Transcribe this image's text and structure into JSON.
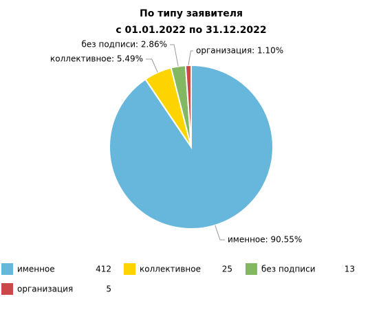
{
  "chart_data": {
    "type": "pie",
    "title": "По типу заявителя",
    "subtitle": "с 01.01.2022 по 31.12.2022",
    "categories": [
      "именное",
      "коллективное",
      "без подписи",
      "организация"
    ],
    "values": [
      90.55,
      5.49,
      2.86,
      1.1
    ],
    "value_labels": [
      "именное: 90.55%",
      "коллективное: 5.49%",
      "без подписи: 2.86%",
      "организация: 1.10%"
    ],
    "counts": [
      412,
      25,
      13,
      5
    ],
    "colors": [
      "#67b7dc",
      "#fdd400",
      "#84b761",
      "#cc4748"
    ]
  }
}
